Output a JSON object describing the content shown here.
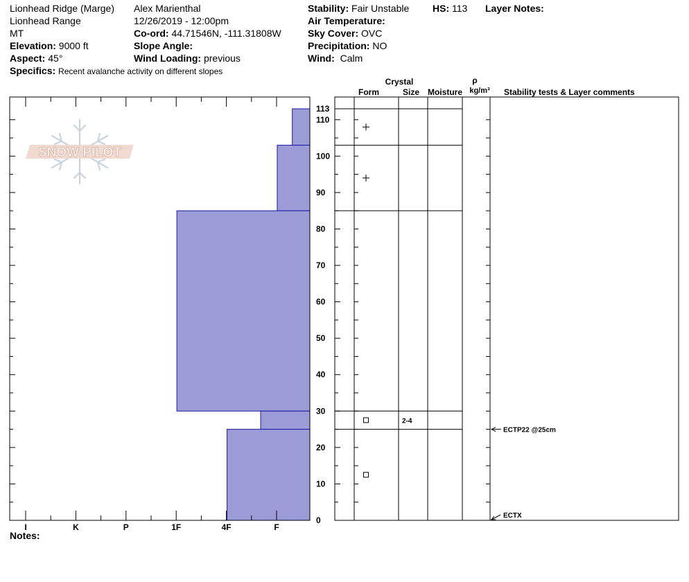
{
  "header": {
    "location": "Lionhead Ridge (Marge)",
    "range": "Lionhead Range",
    "state": "MT",
    "elevation": {
      "label": "Elevation:",
      "value": "9000 ft"
    },
    "aspect": {
      "label": "Aspect:",
      "value": "45°"
    },
    "specifics": {
      "label": "Specifics:",
      "value": "Recent avalanche activity on different slopes"
    },
    "observer": "Alex Marienthal",
    "datetime": "12/26/2019 - 12:00pm",
    "coord": {
      "label": "Co-ord:",
      "value": "44.71546N, -111.31808W"
    },
    "slope_angle": {
      "label": "Slope Angle:",
      "value": ""
    },
    "wind_loading": {
      "label": "Wind Loading:",
      "value": "previous"
    },
    "stability": {
      "label": "Stability:",
      "value": "Fair Unstable"
    },
    "hs": {
      "label": "HS:",
      "value": "113"
    },
    "layer_notes": {
      "label": "Layer Notes:"
    },
    "air_temp": {
      "label": "Air Temperature:",
      "value": ""
    },
    "sky_cover": {
      "label": "Sky Cover:",
      "value": "OVC"
    },
    "precip": {
      "label": "Precipitation:",
      "value": "NO"
    },
    "wind": {
      "label": "Wind:",
      "value": "Calm"
    }
  },
  "columns": {
    "crystal": "Crystal",
    "form": "Form",
    "size": "Size",
    "moisture": "Moisture",
    "rho": "ρ",
    "density_unit": "kg/m³",
    "comments": "Stability tests & Layer comments"
  },
  "notes_label": "Notes:",
  "logo_text": "SNOW PILOT",
  "colors": {
    "hardness_fill": "#9b9bd7",
    "hardness_stroke": "#1a1aa0"
  },
  "chart_data": {
    "type": "bar",
    "orientation": "horizontal",
    "depth_range": [
      0,
      113
    ],
    "y_ticks": [
      0,
      10,
      20,
      30,
      40,
      50,
      60,
      70,
      80,
      90,
      100,
      110
    ],
    "top_label": "113",
    "hardness_scale": [
      "I",
      "K",
      "P",
      "1F",
      "4F",
      "F"
    ],
    "layers": [
      {
        "bottom": 103,
        "top": 113,
        "hardness_index": 0.35
      },
      {
        "bottom": 85,
        "top": 103,
        "hardness_index": 0.65
      },
      {
        "bottom": 30,
        "top": 85,
        "hardness_index": 2.65
      },
      {
        "bottom": 25,
        "top": 30,
        "hardness_index": 0.98
      },
      {
        "bottom": 0,
        "top": 25,
        "hardness_index": 1.65
      }
    ],
    "layer_boundaries": [
      113,
      103,
      85,
      30,
      25
    ],
    "crystals": [
      {
        "depth": 108,
        "symbol": "+",
        "size": ""
      },
      {
        "depth": 94,
        "symbol": "+",
        "size": ""
      },
      {
        "depth": 27.5,
        "symbol": "□",
        "size": "2-4"
      },
      {
        "depth": 12.5,
        "symbol": "□",
        "size": ""
      }
    ],
    "tests": [
      {
        "depth": 25,
        "label": "ECTP22 @25cm"
      },
      {
        "depth": 0,
        "label": "ECTX"
      }
    ]
  }
}
